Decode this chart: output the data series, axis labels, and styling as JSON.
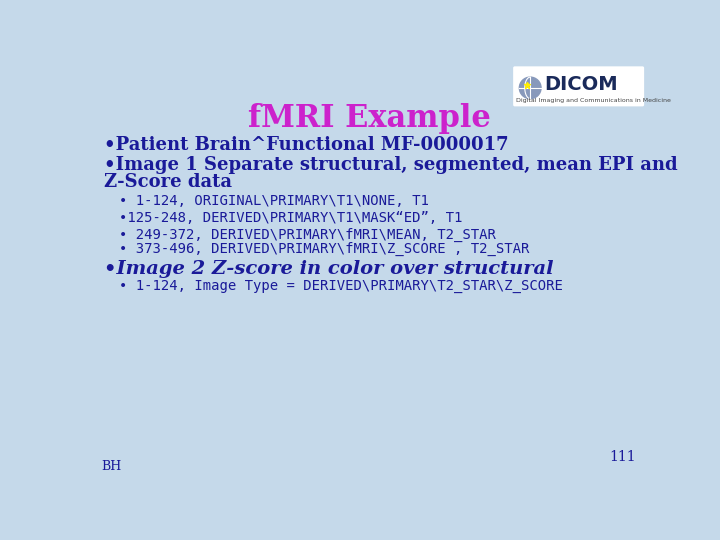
{
  "bg_color": "#c5d9ea",
  "title": "fMRI Example",
  "title_color": "#cc22cc",
  "title_fontsize": 22,
  "body_color": "#1a1a99",
  "bullet1": "•Patient Brain^Functional MF-0000017",
  "bullet2_line1": "•Image 1 Separate structural, segmented, mean EPI and",
  "bullet2_line2": "Z-Score data",
  "sub_items": [
    "• 1-124, ORIGINAL\\PRIMARY\\T1\\NONE, T1",
    "•125-248, DERIVED\\PRIMARY\\T1\\MASK“ED”, T1",
    "• 249-372, DERIVED\\PRIMARY\\fMRI\\MEAN, T2_STAR",
    "• 373-496, DERIVED\\PRIMARY\\fMRI\\Z_SCORE , T2_STAR"
  ],
  "bullet3": "•Image 2 Z-score in color over structural",
  "sub_item2": "• 1-124, Image Type = DERIVED\\PRIMARY\\T2_STAR\\Z_SCORE",
  "page_num": "111",
  "footer": "BH",
  "main_fontsize": 13,
  "sub_fontsize": 10,
  "bold3_fontsize": 14
}
